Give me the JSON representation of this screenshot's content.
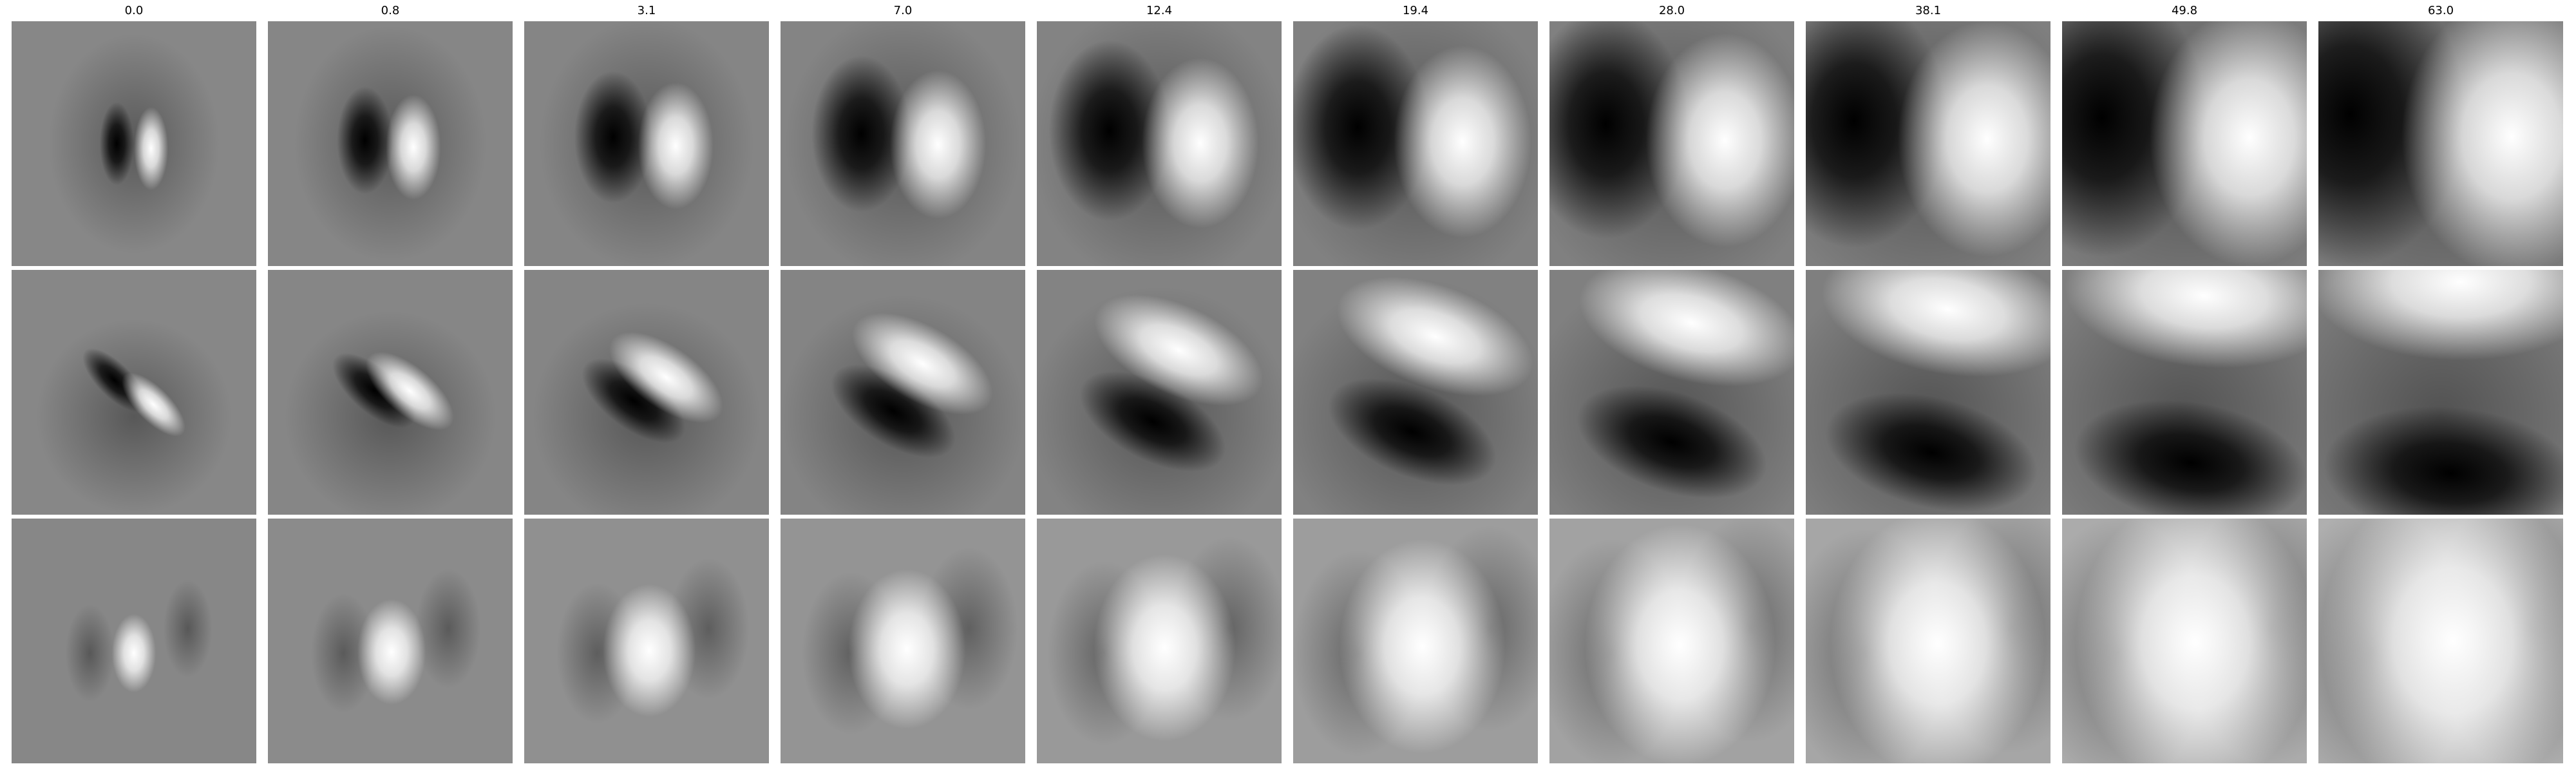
{
  "columns": [
    "0.0",
    "0.8",
    "3.1",
    "7.0",
    "12.4",
    "19.4",
    "28.0",
    "38.1",
    "49.8",
    "63.0"
  ]
}
